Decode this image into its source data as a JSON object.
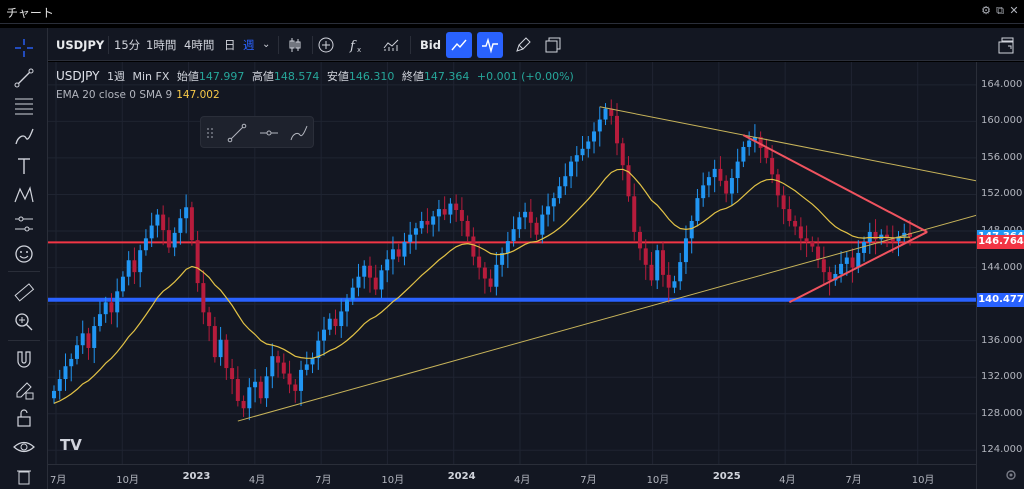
{
  "window": {
    "title": "チャート",
    "controls": [
      "gear-icon",
      "popout-icon",
      "close-icon"
    ]
  },
  "toolbar": {
    "symbol": "USDJPY",
    "intervals": [
      "15分",
      "1時間",
      "4時間",
      "日",
      "週"
    ],
    "active_interval": "週",
    "price_type": "Bid"
  },
  "legend": {
    "symbol": "USDJPY",
    "interval": "1週",
    "source": "Min FX",
    "open_label": "始値",
    "open": "147.997",
    "high_label": "高値",
    "high": "148.574",
    "low_label": "安値",
    "low": "146.310",
    "close_label": "終値",
    "close": "147.364",
    "change": "+0.001 (+0.00%)"
  },
  "indicator": {
    "label": "EMA 20 close 0 SMA 9",
    "value": "147.002"
  },
  "price_axis": {
    "labels": [
      "164.000",
      "160.000",
      "156.000",
      "152.000",
      "148.000",
      "144.000",
      "140.000",
      "136.000",
      "132.000",
      "128.000",
      "124.000"
    ],
    "tags": [
      {
        "value": "147.364",
        "color": "#2196f3"
      },
      {
        "value": "146.764",
        "color": "#f23645"
      },
      {
        "value": "140.477",
        "color": "#2962ff"
      }
    ]
  },
  "time_axis": {
    "labels": [
      {
        "text": "7月",
        "year": false
      },
      {
        "text": "10月",
        "year": false
      },
      {
        "text": "2023",
        "year": true
      },
      {
        "text": "4月",
        "year": false
      },
      {
        "text": "7月",
        "year": false
      },
      {
        "text": "10月",
        "year": false
      },
      {
        "text": "2024",
        "year": true
      },
      {
        "text": "4月",
        "year": false
      },
      {
        "text": "7月",
        "year": false
      },
      {
        "text": "10月",
        "year": false
      },
      {
        "text": "2025",
        "year": true
      },
      {
        "text": "4月",
        "year": false
      },
      {
        "text": "7月",
        "year": false
      },
      {
        "text": "10月",
        "year": false
      }
    ]
  },
  "logo": "TV",
  "colors": {
    "up": "#26a69a",
    "down": "#c2185b",
    "bull_candle": "#2196f3",
    "bear_candle": "#b71c3c",
    "ema": "#e2c246",
    "resistance": "#f23645",
    "support": "#2962ff",
    "trendline": "#c8b45a",
    "triangle": "#f0535f"
  },
  "chart_data": {
    "type": "candlestick",
    "y_range": [
      122.5,
      166.5
    ],
    "horizontal_lines": [
      146.764,
      140.477
    ],
    "closes": [
      130.5,
      131.8,
      133.2,
      134.0,
      135.5,
      136.8,
      135.2,
      137.6,
      138.9,
      140.2,
      139.1,
      141.4,
      143.0,
      144.8,
      143.5,
      145.9,
      147.2,
      148.6,
      149.8,
      148.1,
      146.2,
      147.8,
      149.4,
      150.6,
      147.0,
      142.3,
      139.1,
      137.6,
      134.2,
      136.1,
      133.0,
      131.8,
      129.4,
      128.6,
      130.9,
      131.5,
      129.7,
      132.1,
      134.3,
      133.6,
      132.4,
      131.2,
      130.5,
      132.8,
      133.4,
      134.1,
      136.0,
      137.2,
      138.4,
      137.6,
      139.2,
      140.5,
      141.8,
      143.0,
      144.2,
      142.9,
      141.6,
      143.7,
      144.9,
      146.0,
      145.2,
      146.8,
      147.6,
      148.3,
      149.1,
      148.7,
      149.6,
      150.4,
      149.8,
      151.0,
      150.3,
      149.1,
      147.4,
      145.2,
      144.0,
      142.8,
      141.9,
      144.3,
      145.6,
      146.9,
      148.2,
      149.5,
      150.1,
      148.9,
      147.6,
      149.8,
      150.7,
      151.6,
      152.9,
      154.0,
      155.6,
      156.3,
      157.0,
      157.8,
      158.9,
      160.2,
      161.4,
      160.6,
      157.6,
      155.2,
      151.8,
      147.9,
      146.1,
      144.3,
      142.6,
      145.9,
      143.2,
      141.8,
      142.5,
      144.6,
      147.2,
      149.1,
      151.6,
      153.0,
      153.9,
      154.8,
      153.5,
      152.1,
      153.8,
      155.6,
      157.2,
      157.9,
      158.3,
      157.1,
      156.0,
      154.2,
      151.9,
      150.4,
      149.1,
      148.5,
      147.2,
      146.8,
      146.3,
      144.9,
      143.5,
      142.6,
      143.3,
      144.4,
      145.1,
      144.0,
      145.6,
      146.8,
      147.9,
      147.1,
      147.6,
      147.2,
      146.9,
      147.4,
      147.8,
      147.36
    ]
  }
}
